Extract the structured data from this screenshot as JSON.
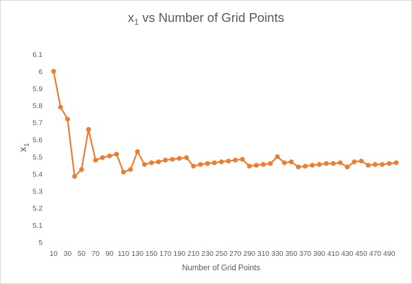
{
  "chart_data": {
    "type": "line",
    "title": {
      "main": "x",
      "subscript": "1",
      "rest": " vs Number of Grid Points"
    },
    "xlabel": "Number of Grid Points",
    "ylabel": {
      "main": "x",
      "subscript": "1"
    },
    "ylim": [
      5,
      6.1
    ],
    "ytick_labels": [
      "5",
      "5.1",
      "5.2",
      "5.3",
      "5.4",
      "5.5",
      "5.6",
      "5.7",
      "5.8",
      "5.9",
      "6",
      "6.1"
    ],
    "xtick_labels": [
      "10",
      "30",
      "50",
      "70",
      "90",
      "110",
      "130",
      "150",
      "170",
      "190",
      "210",
      "230",
      "250",
      "270",
      "290",
      "310",
      "330",
      "350",
      "370",
      "390",
      "410",
      "430",
      "450",
      "470",
      "490"
    ],
    "grid": false,
    "legend": "none",
    "series": [
      {
        "color": "#ED7D31",
        "x": [
          10,
          20,
          30,
          40,
          50,
          60,
          70,
          80,
          90,
          100,
          110,
          120,
          130,
          140,
          150,
          160,
          170,
          180,
          190,
          200,
          210,
          220,
          230,
          240,
          250,
          260,
          270,
          280,
          290,
          300,
          310,
          320,
          330,
          340,
          350,
          360,
          370,
          380,
          390,
          400,
          410,
          420,
          430,
          440,
          450,
          460,
          470,
          480,
          490,
          500
        ],
        "values": [
          6.0,
          5.79,
          5.72,
          5.385,
          5.425,
          5.66,
          5.48,
          5.495,
          5.505,
          5.515,
          5.41,
          5.425,
          5.53,
          5.455,
          5.465,
          5.47,
          5.48,
          5.485,
          5.49,
          5.495,
          5.445,
          5.455,
          5.46,
          5.465,
          5.47,
          5.475,
          5.48,
          5.485,
          5.445,
          5.45,
          5.455,
          5.46,
          5.5,
          5.465,
          5.47,
          5.44,
          5.445,
          5.45,
          5.455,
          5.46,
          5.46,
          5.465,
          5.44,
          5.47,
          5.475,
          5.45,
          5.455,
          5.455,
          5.46,
          5.465
        ]
      }
    ]
  }
}
